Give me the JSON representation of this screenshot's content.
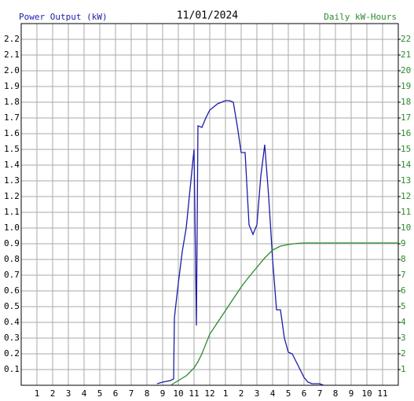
{
  "chart_data": {
    "type": "line",
    "title": "11/01/2024",
    "xlim": [
      0,
      24
    ],
    "xticks": [
      1,
      2,
      3,
      4,
      5,
      6,
      7,
      8,
      9,
      10,
      11,
      12,
      {
        "value": 13,
        "label": "1"
      },
      {
        "value": 14,
        "label": "2"
      },
      {
        "value": 15,
        "label": "3"
      },
      {
        "value": 16,
        "label": "4"
      },
      {
        "value": 17,
        "label": "5"
      },
      {
        "value": 18,
        "label": "6"
      },
      {
        "value": 19,
        "label": "7"
      },
      {
        "value": 20,
        "label": "8"
      },
      {
        "value": 21,
        "label": "9"
      },
      {
        "value": 22,
        "label": "10"
      },
      {
        "value": 23,
        "label": "11"
      }
    ],
    "ylim": [
      0,
      2.3
    ],
    "yticks": [
      0.1,
      0.2,
      0.3,
      0.4,
      0.5,
      0.6,
      0.7,
      0.8,
      0.9,
      {
        "value": 1,
        "label": "1.0"
      },
      1.1,
      1.2,
      1.3,
      1.4,
      1.5,
      1.6,
      1.7,
      1.8,
      1.9,
      {
        "value": 2,
        "label": "2.0"
      },
      2.1,
      2.2
    ],
    "y2lim": [
      0,
      23
    ],
    "y2ticks": [
      1,
      2,
      3,
      4,
      5,
      6,
      7,
      8,
      9,
      10,
      11,
      12,
      13,
      14,
      15,
      16,
      17,
      18,
      19,
      20,
      21,
      22
    ],
    "grid": true,
    "series": [
      {
        "name": "Power Output (kW)",
        "color": "#1c1caa",
        "x": [
          8.65,
          9.0,
          9.5,
          9.7,
          9.75,
          10.0,
          10.25,
          10.5,
          10.75,
          11.0,
          11.15,
          11.25,
          11.5,
          11.75,
          12.0,
          12.25,
          12.5,
          12.75,
          13.0,
          13.25,
          13.5,
          13.75,
          14.0,
          14.25,
          14.5,
          14.75,
          15.0,
          15.25,
          15.5,
          15.75,
          16.0,
          16.25,
          16.5,
          16.75,
          17.0,
          17.25,
          17.5,
          17.75,
          18.0,
          18.25,
          18.5,
          19.0,
          19.25
        ],
        "values": [
          0.01,
          0.02,
          0.03,
          0.04,
          0.43,
          0.65,
          0.85,
          1.0,
          1.25,
          1.5,
          0.38,
          1.65,
          1.64,
          1.7,
          1.75,
          1.77,
          1.79,
          1.8,
          1.81,
          1.81,
          1.8,
          1.65,
          1.48,
          1.48,
          1.02,
          0.96,
          1.02,
          1.33,
          1.53,
          1.2,
          0.8,
          0.48,
          0.48,
          0.3,
          0.21,
          0.2,
          0.15,
          0.1,
          0.05,
          0.02,
          0.01,
          0.01,
          0
        ]
      },
      {
        "name": "Daily kW-Hours",
        "color": "#2a8a2a",
        "axis": "y2",
        "x": [
          9.5,
          10.0,
          10.5,
          11.0,
          11.25,
          11.5,
          12.0,
          12.5,
          13.0,
          13.5,
          14.0,
          14.5,
          15.0,
          15.5,
          16.0,
          16.5,
          17.0,
          17.5,
          18.0,
          19.0,
          20.0,
          22.0,
          24.0
        ],
        "values": [
          0,
          0.3,
          0.6,
          1.1,
          1.5,
          2.0,
          3.25,
          4.0,
          4.75,
          5.5,
          6.25,
          6.9,
          7.5,
          8.1,
          8.6,
          8.85,
          8.95,
          9.02,
          9.05,
          9.05,
          9.05,
          9.05,
          9.05
        ]
      }
    ]
  }
}
